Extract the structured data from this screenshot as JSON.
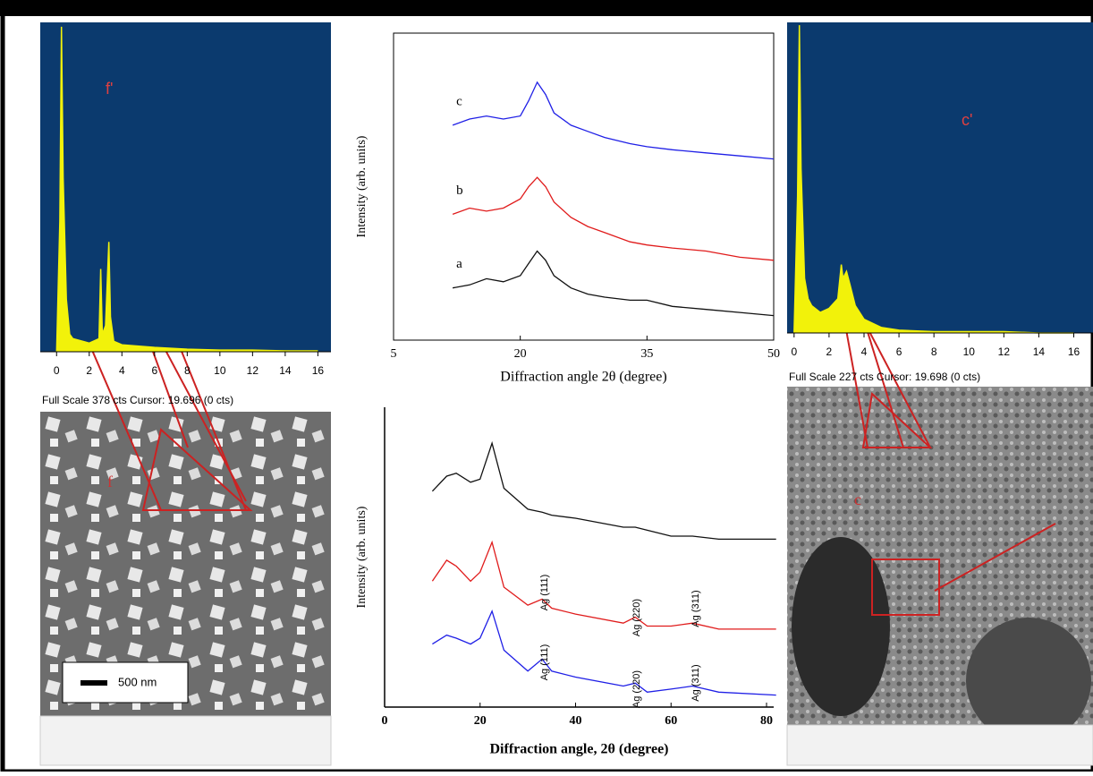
{
  "chart_data": [
    {
      "type": "area",
      "label": "f'",
      "footer": "Full Scale 378 cts Cursor: 19.696 (0 cts)",
      "color": "#f2f20a",
      "background": "#0b3a6e",
      "x": [
        0,
        0.2,
        0.3,
        0.4,
        0.6,
        0.8,
        1,
        2,
        2.6,
        2.7,
        2.8,
        3,
        3.2,
        3.3,
        3.5,
        4,
        6,
        8,
        10,
        12,
        14,
        16
      ],
      "values": [
        0,
        150,
        373,
        200,
        60,
        20,
        15,
        10,
        15,
        95,
        20,
        30,
        126,
        40,
        12,
        8,
        5,
        3,
        2,
        2,
        1,
        1
      ],
      "xlim": [
        -1,
        16.8
      ],
      "ylim": [
        0,
        378
      ],
      "xticks": [
        0,
        2,
        4,
        6,
        8,
        10,
        12,
        14,
        16
      ]
    },
    {
      "type": "line",
      "xlabel": "Diffraction angle 2θ (degree)",
      "ylabel": "Intensity (arb. units)",
      "x": [
        12,
        14,
        16,
        18,
        20,
        21,
        22,
        23,
        24,
        26,
        28,
        30,
        33,
        35,
        38,
        42,
        46,
        50
      ],
      "series": [
        {
          "name": "a",
          "color": "#111111",
          "values": [
            17,
            18,
            20,
            19,
            21,
            25,
            29,
            26,
            21,
            17,
            15,
            14,
            13,
            13,
            11,
            10,
            9,
            8
          ]
        },
        {
          "name": "b",
          "color": "#e01b1b",
          "values": [
            41,
            43,
            42,
            43,
            46,
            50,
            53,
            50,
            45,
            40,
            37,
            35,
            32,
            31,
            30,
            29,
            27,
            26
          ]
        },
        {
          "name": "c",
          "color": "#1f1fe6",
          "values": [
            70,
            72,
            73,
            72,
            73,
            78,
            84,
            80,
            74,
            70,
            68,
            66,
            64,
            63,
            62,
            61,
            60,
            59
          ]
        }
      ],
      "xlim": [
        5,
        50
      ],
      "ylim": [
        0,
        100
      ],
      "xticks": [
        5,
        20,
        35,
        50
      ]
    },
    {
      "type": "line",
      "xlabel": "Diffraction angle, 2θ (degree)",
      "ylabel": "Intensity (arb. units)",
      "x": [
        10,
        13,
        15,
        18,
        20,
        22.5,
        25,
        30,
        33,
        35,
        40,
        50,
        52.5,
        55,
        60,
        64.5,
        70,
        82
      ],
      "series": [
        {
          "color": "#111111",
          "values": [
            72,
            77,
            78,
            75,
            76,
            88,
            73,
            66,
            65,
            64,
            63,
            60,
            60,
            59,
            57,
            57,
            56,
            56
          ]
        },
        {
          "color": "#e01b1b",
          "values": [
            42,
            49,
            47,
            42,
            45,
            55,
            40,
            34,
            36,
            33,
            31,
            28,
            30,
            27,
            27,
            28,
            26,
            26
          ]
        },
        {
          "color": "#1f1fe6",
          "values": [
            21,
            24,
            23,
            21,
            23,
            32,
            19,
            12,
            16,
            12,
            10,
            7,
            8,
            5,
            6,
            7,
            5,
            4
          ]
        }
      ],
      "annotations": [
        "Ag (111)",
        "Ag (220)",
        "Ag (311)",
        "Ag (111)",
        "Ag (220)",
        "Ag (311)"
      ],
      "xlim": [
        0,
        81.5
      ],
      "ylim": [
        0,
        100
      ],
      "xticks": [
        0,
        20,
        40,
        60,
        80
      ]
    },
    {
      "type": "area",
      "label": "c'",
      "footer": "Full Scale 227 cts Cursor: 19.698 (0 cts)",
      "color": "#f2f20a",
      "background": "#0b3a6e",
      "x": [
        0,
        0.2,
        0.3,
        0.4,
        0.6,
        0.8,
        1,
        1.5,
        2,
        2.5,
        2.7,
        2.8,
        3,
        3.2,
        3.5,
        4,
        5,
        6,
        8,
        10,
        12,
        14,
        16
      ],
      "values": [
        0,
        100,
        225,
        120,
        40,
        25,
        20,
        15,
        18,
        25,
        50,
        40,
        45,
        35,
        20,
        10,
        4,
        2,
        1,
        1,
        1,
        0,
        0
      ],
      "xlim": [
        -0.4,
        17.1
      ],
      "ylim": [
        0,
        227
      ],
      "xticks": [
        0,
        2,
        4,
        6,
        8,
        10,
        12,
        14,
        16
      ]
    }
  ],
  "images": {
    "left_label": "f",
    "left_scale": "500 nm",
    "right_label": "c"
  }
}
